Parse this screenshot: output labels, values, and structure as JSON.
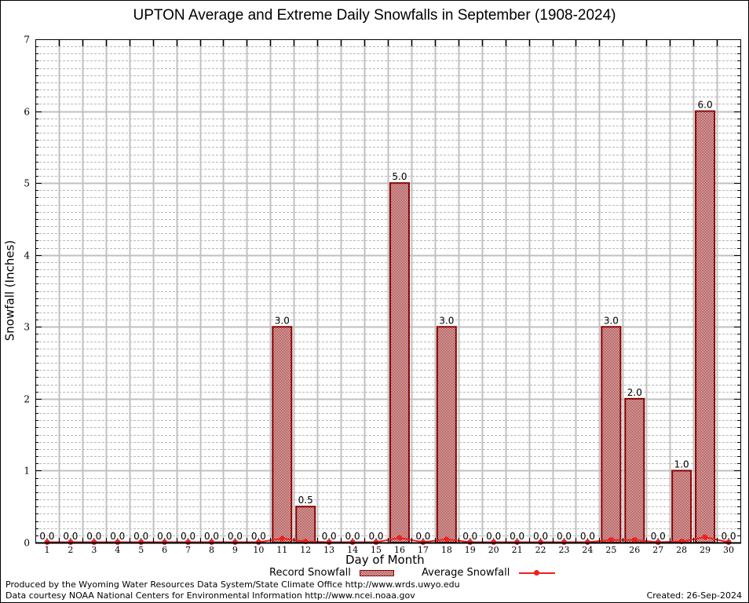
{
  "chart_data": {
    "type": "bar",
    "title": "UPTON Average and Extreme Daily Snowfalls in September (1908-2024)",
    "xlabel": "Day of Month",
    "ylabel": "Snowfall (Inches)",
    "ylim": [
      0,
      7
    ],
    "yticks": [
      0,
      1,
      2,
      3,
      4,
      5,
      6,
      7
    ],
    "grid": true,
    "categories": [
      "1",
      "2",
      "3",
      "4",
      "5",
      "6",
      "7",
      "8",
      "9",
      "10",
      "11",
      "12",
      "13",
      "14",
      "15",
      "16",
      "17",
      "18",
      "19",
      "20",
      "21",
      "22",
      "23",
      "24",
      "25",
      "26",
      "27",
      "28",
      "29",
      "30"
    ],
    "series": [
      {
        "name": "Record Snowfall",
        "type": "bar",
        "color": "#8b0000",
        "values": [
          0,
          0,
          0,
          0,
          0,
          0,
          0,
          0,
          0,
          0,
          3.0,
          0.5,
          0,
          0,
          0,
          5.0,
          0,
          3.0,
          0,
          0,
          0,
          0,
          0,
          0,
          3.0,
          2.0,
          0,
          1.0,
          6.0,
          0
        ],
        "labels": [
          "0.0",
          "0.0",
          "0.0",
          "0.0",
          "0.0",
          "0.0",
          "0.0",
          "0.0",
          "0.0",
          "0.0",
          "3.0",
          "0.5",
          "0.0",
          "0.0",
          "0.0",
          "5.0",
          "0.0",
          "3.0",
          "0.0",
          "0.0",
          "0.0",
          "0.0",
          "0.0",
          "0.0",
          "3.0",
          "2.0",
          "0.0",
          "1.0",
          "6.0",
          "0.0"
        ]
      },
      {
        "name": "Average Snowfall",
        "type": "line",
        "color": "#ee2020",
        "values": [
          0,
          0,
          0,
          0,
          0,
          0,
          0,
          0,
          0,
          0,
          0.05,
          0.01,
          0,
          0,
          0,
          0.06,
          0,
          0.04,
          0,
          0,
          0,
          0,
          0,
          0,
          0.03,
          0.03,
          0,
          0.01,
          0.07,
          0
        ]
      }
    ],
    "legend_position": "bottom"
  },
  "footer": {
    "credit_line1": "Produced by the Wyoming Water Resources Data System/State Climate Office http://www.wrds.uwyo.edu",
    "credit_line2": "Data courtesy NOAA National Centers for Environmental Information http://www.ncei.noaa.gov",
    "created": "Created: 26-Sep-2024"
  }
}
